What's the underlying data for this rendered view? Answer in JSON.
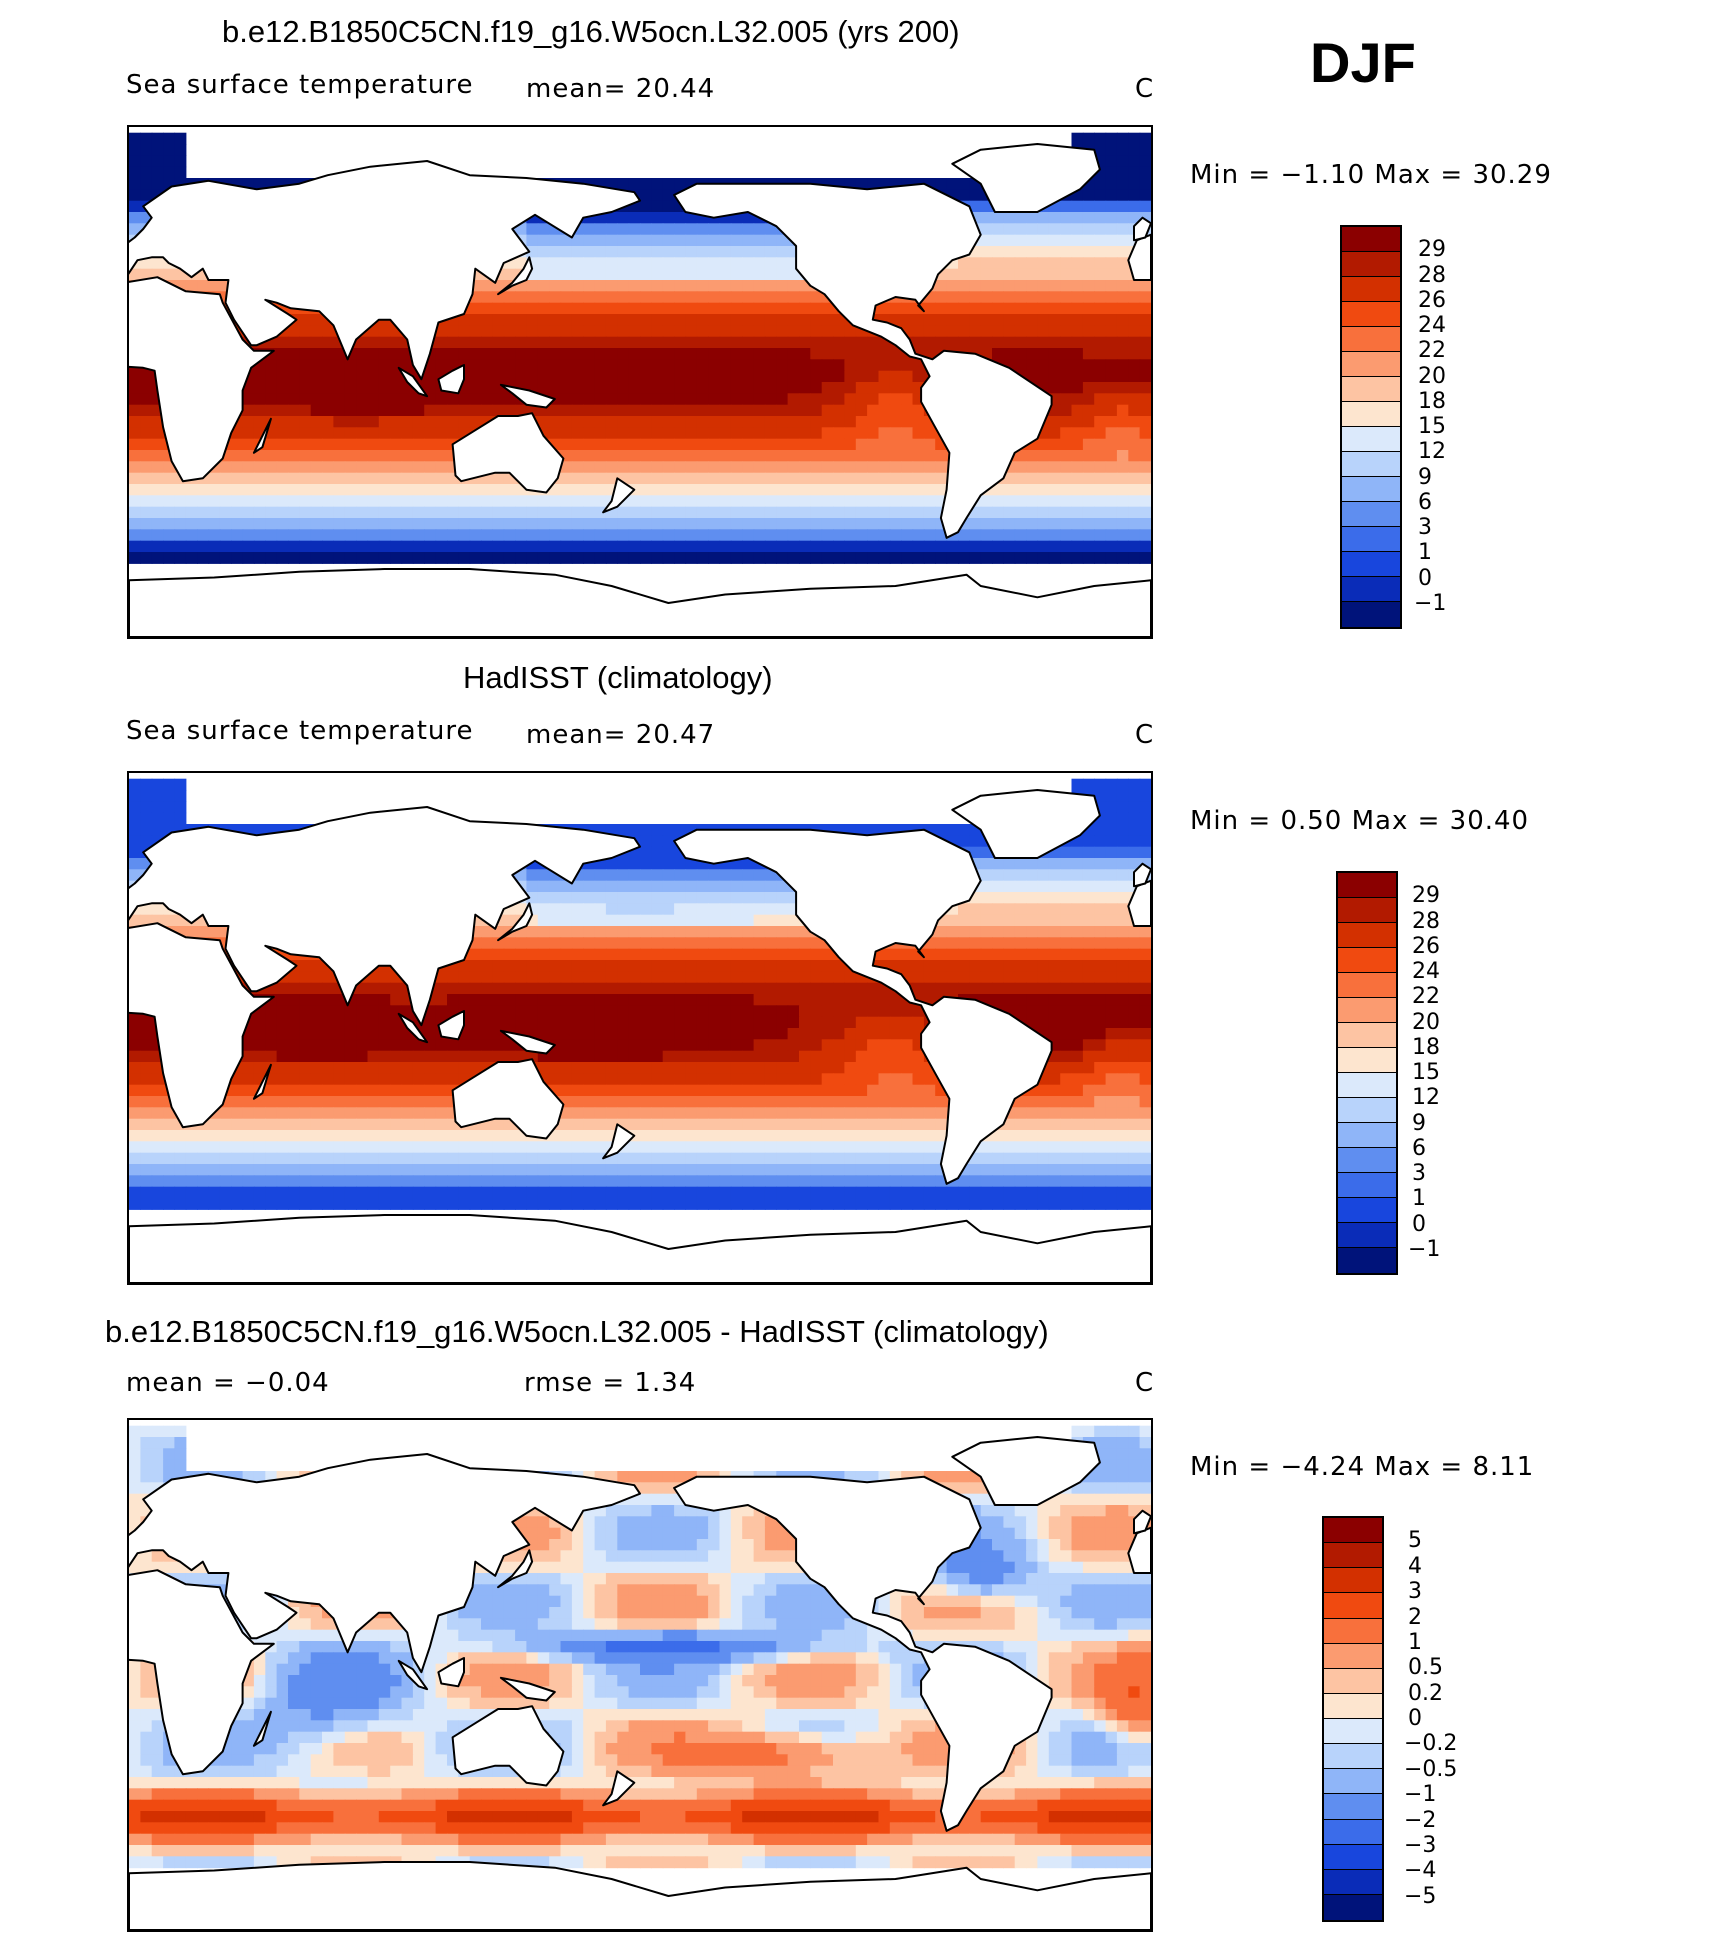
{
  "season": "DJF",
  "panels": [
    {
      "title": "b.e12.B1850C5CN.f19_g16.W5ocn.L32.005 (yrs 200)",
      "variable": "Sea surface temperature",
      "stat1": "mean=   20.44",
      "units": "C",
      "minmax": "Min =   −1.10 Max =   30.29",
      "field": "model"
    },
    {
      "title": "HadISST (climatology)",
      "variable": "Sea surface temperature",
      "stat1": "mean=   20.47",
      "units": "C",
      "minmax": "Min =    0.50 Max =   30.40",
      "field": "obs"
    },
    {
      "title": "b.e12.B1850C5CN.f19_g16.W5ocn.L32.005 - HadISST (climatology)",
      "variable": "mean =   −0.04",
      "stat1": "rmse =    1.34",
      "units": "C",
      "minmax": "Min =   −4.24 Max =    8.11",
      "field": "diff"
    }
  ],
  "colorbar_sst": {
    "labels": [
      "29",
      "28",
      "26",
      "24",
      "22",
      "20",
      "18",
      "15",
      "12",
      "9",
      "6",
      "3",
      "1",
      "0",
      "−1"
    ],
    "colors": [
      "#8b0000",
      "#b21a00",
      "#d33000",
      "#f04a10",
      "#f8703c",
      "#fb9b70",
      "#fdc4a3",
      "#fde5cf",
      "#dbe9fb",
      "#b8d3fb",
      "#8fb5f8",
      "#5f8ef0",
      "#3b6cea",
      "#1846dd",
      "#0a2cb8",
      "#00137a"
    ]
  },
  "colorbar_diff": {
    "labels": [
      "5",
      "4",
      "3",
      "2",
      "1",
      "0.5",
      "0.2",
      "0",
      "−0.2",
      "−0.5",
      "−1",
      "−2",
      "−3",
      "−4",
      "−5"
    ],
    "colors": [
      "#8b0000",
      "#b21a00",
      "#d33000",
      "#f04a10",
      "#f8703c",
      "#fb9b70",
      "#fdc4a3",
      "#fde5cf",
      "#dbe9fb",
      "#b8d3fb",
      "#8fb5f8",
      "#5f8ef0",
      "#3b6cea",
      "#1846dd",
      "#0a2cb8",
      "#00137a"
    ]
  }
}
